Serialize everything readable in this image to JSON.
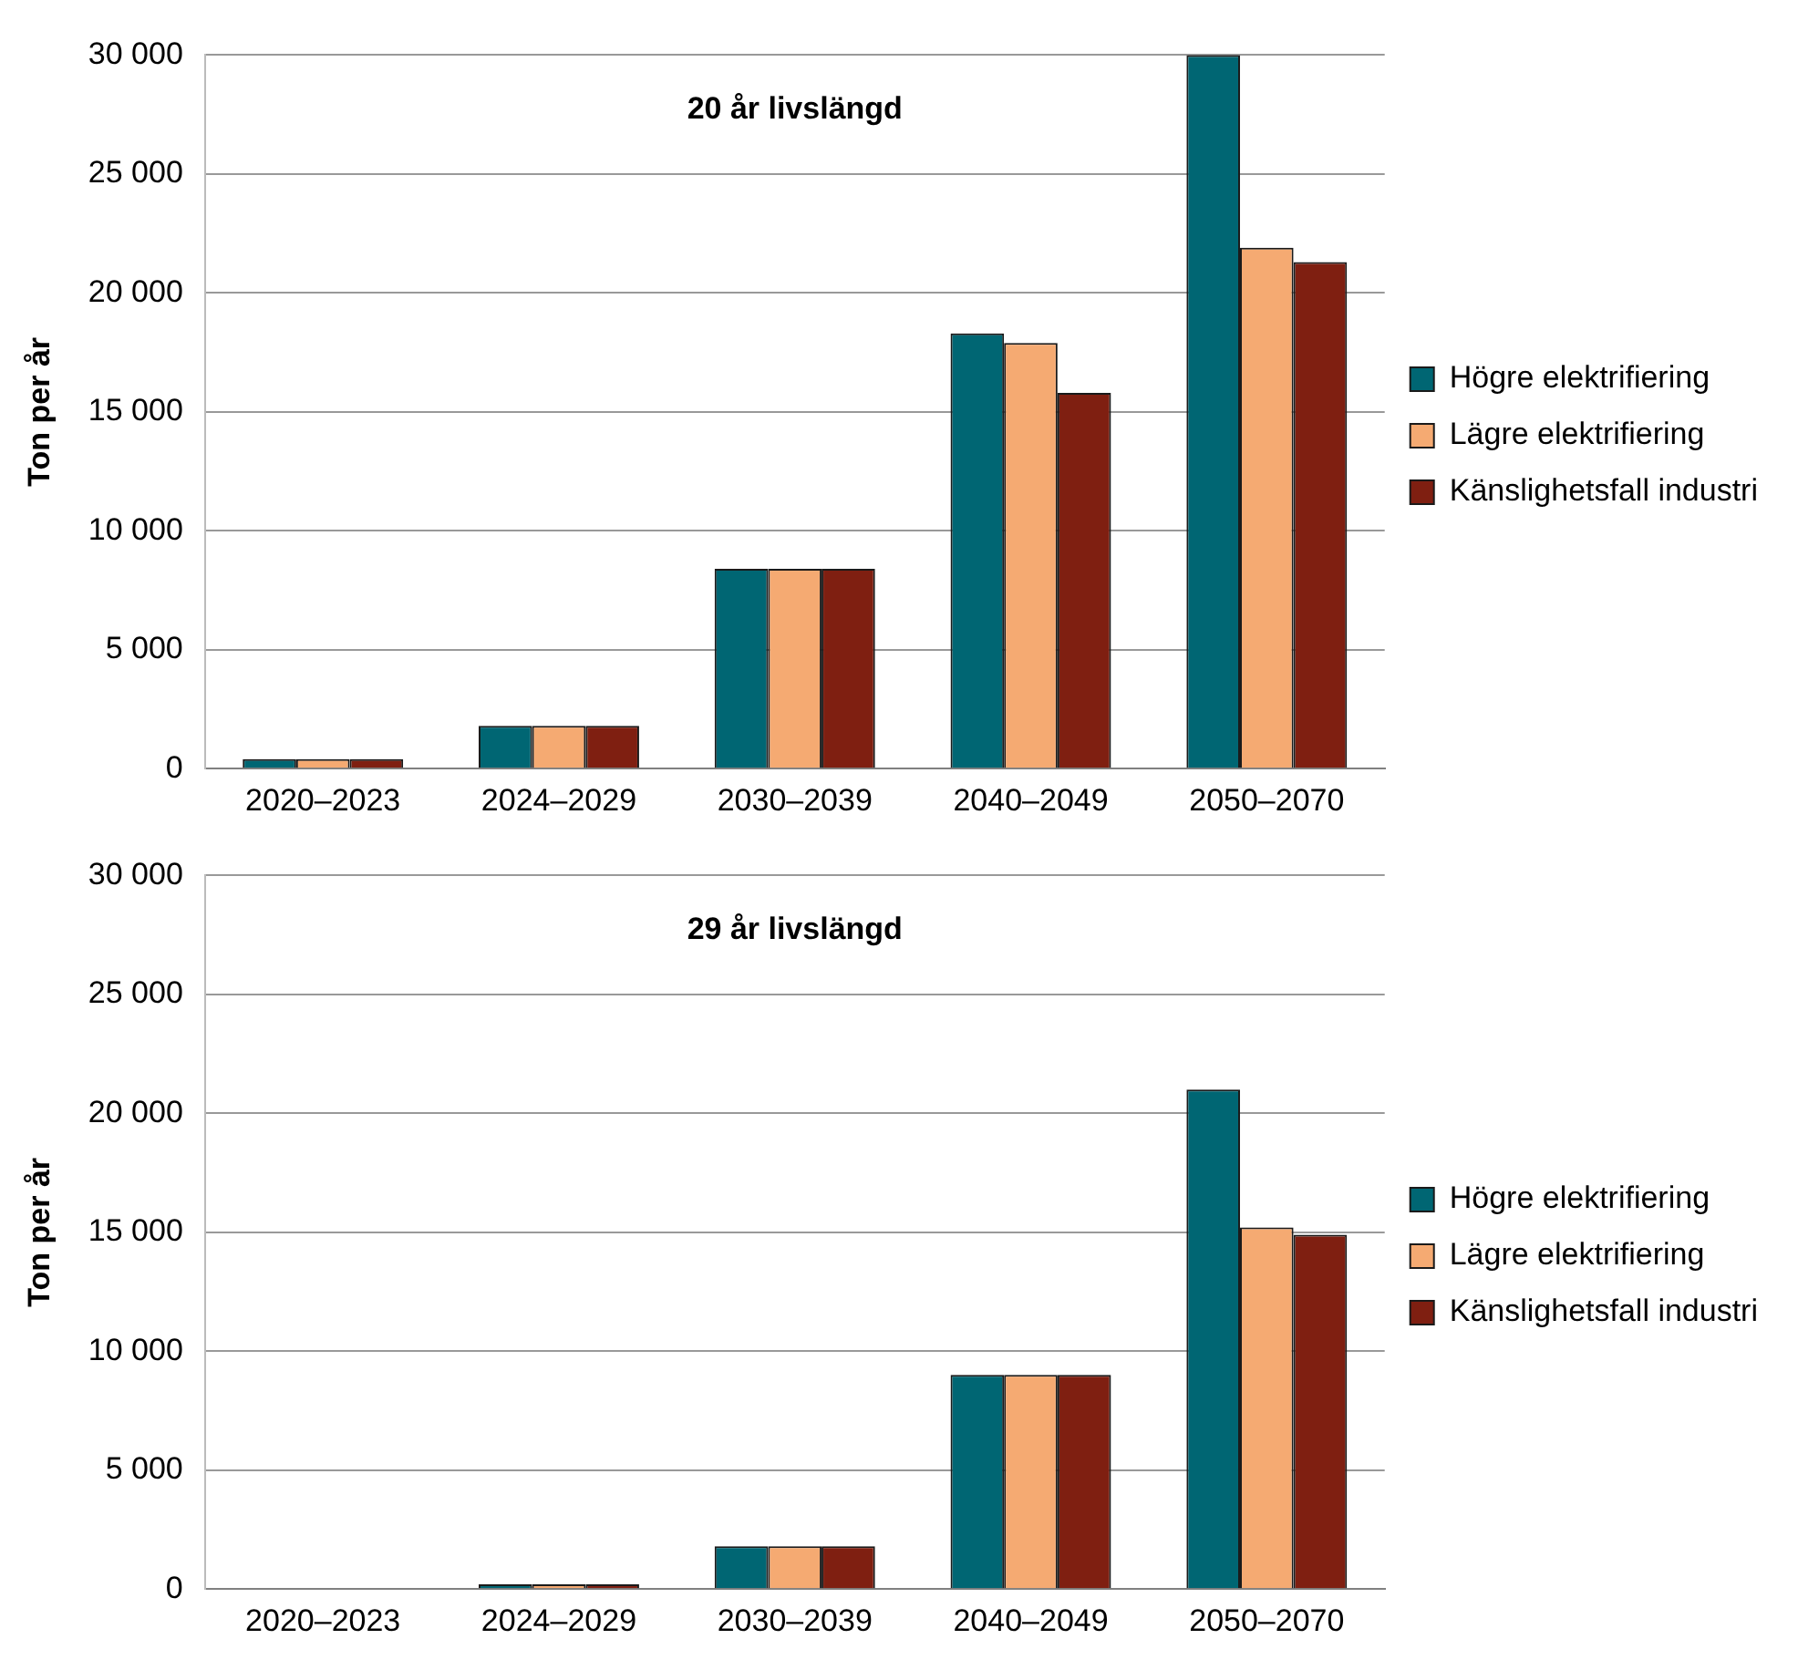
{
  "chart_data": [
    {
      "type": "bar",
      "title": "20 år livslängd",
      "ylabel": "Ton per år",
      "categories": [
        "2020–2023",
        "2024–2029",
        "2030–2039",
        "2040–2049",
        "2050–2070"
      ],
      "series": [
        {
          "name": "Högre elektrifiering",
          "color": "#006673",
          "values": [
            400,
            1800,
            8400,
            18300,
            30000
          ]
        },
        {
          "name": "Lägre elektrifiering",
          "color": "#f5aa72",
          "values": [
            400,
            1800,
            8400,
            17900,
            21900
          ]
        },
        {
          "name": "Känslighetsfall industri",
          "color": "#7f1f11",
          "values": [
            400,
            1800,
            8400,
            15800,
            21300
          ]
        }
      ],
      "ylim": [
        0,
        30000
      ],
      "yticks": [
        {
          "value": 0,
          "label": "0"
        },
        {
          "value": 5000,
          "label": "5 000"
        },
        {
          "value": 10000,
          "label": "10 000"
        },
        {
          "value": 15000,
          "label": "15 000"
        },
        {
          "value": 20000,
          "label": "20 000"
        },
        {
          "value": 25000,
          "label": "25 000"
        },
        {
          "value": 30000,
          "label": "30 000"
        }
      ],
      "grid": "y",
      "legend": "right"
    },
    {
      "type": "bar",
      "title": "29 år livslängd",
      "ylabel": "Ton per år",
      "categories": [
        "2020–2023",
        "2024–2029",
        "2030–2039",
        "2040–2049",
        "2050–2070"
      ],
      "series": [
        {
          "name": "Högre elektrifiering",
          "color": "#006673",
          "values": [
            0,
            200,
            1800,
            9000,
            21000
          ]
        },
        {
          "name": "Lägre elektrifiering",
          "color": "#f5aa72",
          "values": [
            0,
            200,
            1800,
            9000,
            15200
          ]
        },
        {
          "name": "Känslighetsfall industri",
          "color": "#7f1f11",
          "values": [
            0,
            200,
            1800,
            9000,
            14900
          ]
        }
      ],
      "ylim": [
        0,
        30000
      ],
      "yticks": [
        {
          "value": 0,
          "label": "0"
        },
        {
          "value": 5000,
          "label": "5 000"
        },
        {
          "value": 10000,
          "label": "10 000"
        },
        {
          "value": 15000,
          "label": "15 000"
        },
        {
          "value": 20000,
          "label": "20 000"
        },
        {
          "value": 25000,
          "label": "25 000"
        },
        {
          "value": 30000,
          "label": "30 000"
        }
      ],
      "grid": "y",
      "legend": "right"
    }
  ]
}
